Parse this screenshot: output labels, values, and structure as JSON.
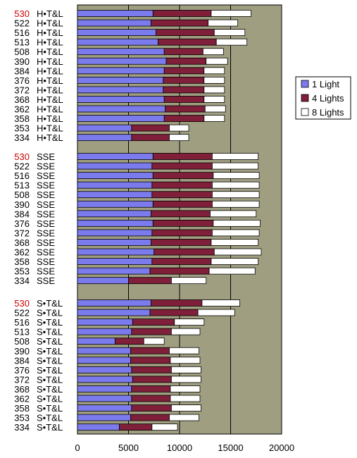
{
  "chart_data": {
    "type": "bar",
    "orientation": "horizontal",
    "stacked": true,
    "xlim": [
      0,
      20000
    ],
    "x_ticks": [
      "0",
      "5000",
      "10000",
      "15000",
      "20000"
    ],
    "grid": true,
    "legend_position": "right",
    "highlight_model": "530",
    "series": [
      {
        "name": "1 Light",
        "color": "#7b7bee"
      },
      {
        "name": "4 Lights",
        "color": "#7f1f3a"
      },
      {
        "name": "8 Lights",
        "color": "#ffffff"
      }
    ],
    "groups": [
      {
        "name": "H*T&L",
        "label": "H•T&L",
        "rows": [
          {
            "model": "530",
            "values": [
              7400,
              5700,
              3900
            ]
          },
          {
            "model": "522",
            "values": [
              7200,
              5600,
              2900
            ]
          },
          {
            "model": "516",
            "values": [
              7700,
              5700,
              3000
            ]
          },
          {
            "model": "513",
            "values": [
              7900,
              5700,
              3000
            ]
          },
          {
            "model": "508",
            "values": [
              8500,
              3800,
              2000
            ]
          },
          {
            "model": "390",
            "values": [
              8700,
              3900,
              2100
            ]
          },
          {
            "model": "384",
            "values": [
              8500,
              3900,
              2000
            ]
          },
          {
            "model": "376",
            "values": [
              8400,
              4000,
              2000
            ]
          },
          {
            "model": "372",
            "values": [
              8400,
              4000,
              2000
            ]
          },
          {
            "model": "368",
            "values": [
              8500,
              3900,
              2000
            ]
          },
          {
            "model": "362",
            "values": [
              8600,
              3900,
              2000
            ]
          },
          {
            "model": "358",
            "values": [
              8500,
              3900,
              2000
            ]
          },
          {
            "model": "353",
            "values": [
              5300,
              3700,
              1900
            ]
          },
          {
            "model": "334",
            "values": [
              5300,
              3700,
              1900
            ]
          }
        ]
      },
      {
        "name": "SSE",
        "label": "SSE",
        "rows": [
          {
            "model": "530",
            "values": [
              7400,
              5800,
              4500
            ]
          },
          {
            "model": "522",
            "values": [
              7300,
              5900,
              4500
            ]
          },
          {
            "model": "516",
            "values": [
              7400,
              5900,
              4500
            ]
          },
          {
            "model": "513",
            "values": [
              7300,
              5900,
              4600
            ]
          },
          {
            "model": "508",
            "values": [
              7300,
              5900,
              4600
            ]
          },
          {
            "model": "390",
            "values": [
              7400,
              5800,
              4600
            ]
          },
          {
            "model": "384",
            "values": [
              7200,
              5800,
              4500
            ]
          },
          {
            "model": "376",
            "values": [
              7400,
              5900,
              4600
            ]
          },
          {
            "model": "372",
            "values": [
              7300,
              5900,
              4600
            ]
          },
          {
            "model": "368",
            "values": [
              7200,
              5900,
              4600
            ]
          },
          {
            "model": "362",
            "values": [
              7500,
              5900,
              4600
            ]
          },
          {
            "model": "358",
            "values": [
              7300,
              5800,
              4600
            ]
          },
          {
            "model": "353",
            "values": [
              7100,
              5800,
              4500
            ]
          },
          {
            "model": "334",
            "values": [
              5000,
              4200,
              3400
            ]
          }
        ]
      },
      {
        "name": "S*T&L",
        "label": "S•T&L",
        "rows": [
          {
            "model": "530",
            "values": [
              7200,
              5000,
              3700
            ]
          },
          {
            "model": "522",
            "values": [
              7100,
              4700,
              3600
            ]
          },
          {
            "model": "516",
            "values": [
              5400,
              4100,
              2900
            ]
          },
          {
            "model": "513",
            "values": [
              5300,
              3900,
              2800
            ]
          },
          {
            "model": "508",
            "values": [
              3700,
              2800,
              2000
            ]
          },
          {
            "model": "390",
            "values": [
              5200,
              3800,
              2900
            ]
          },
          {
            "model": "384",
            "values": [
              5200,
              3900,
              2900
            ]
          },
          {
            "model": "376",
            "values": [
              5300,
              3900,
              2900
            ]
          },
          {
            "model": "372",
            "values": [
              5400,
              3800,
              2900
            ]
          },
          {
            "model": "368",
            "values": [
              5300,
              3800,
              2900
            ]
          },
          {
            "model": "362",
            "values": [
              5300,
              3800,
              2900
            ]
          },
          {
            "model": "358",
            "values": [
              5300,
              3900,
              2900
            ]
          },
          {
            "model": "353",
            "values": [
              5200,
              3800,
              2900
            ]
          },
          {
            "model": "334",
            "values": [
              4100,
              3200,
              2500
            ]
          }
        ]
      }
    ]
  }
}
